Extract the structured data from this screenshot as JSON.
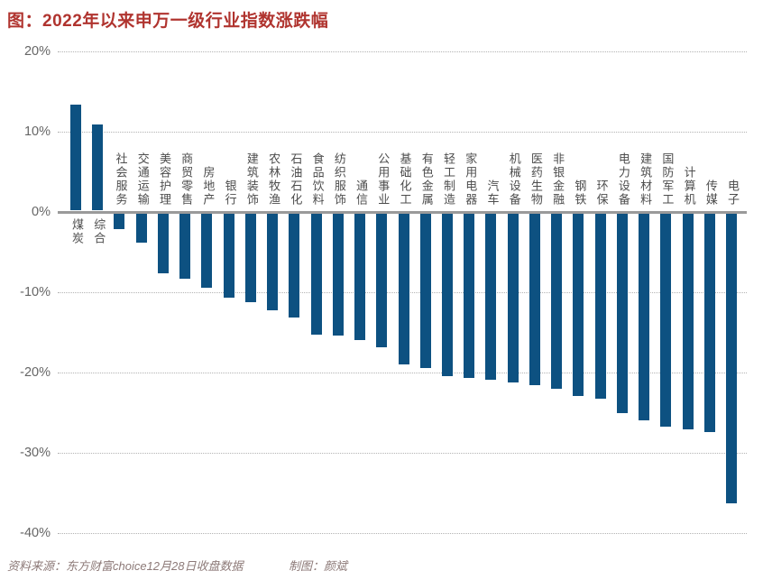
{
  "title": "图：2022年以来申万一级行业指数涨跌幅",
  "footer": {
    "source": "资料来源：东方财富choice12月28日收盘数据",
    "credit": "制图：颜斌"
  },
  "colors": {
    "bar": "#0d5181",
    "title_text": "#b0342f",
    "footer_text": "#8d7a78",
    "axis_line": "#9a9a9a",
    "gridline": "#b3b3b3",
    "tick_label": "#666666",
    "category_label": "#4d4d4d",
    "background": "#ffffff"
  },
  "chart_data": {
    "type": "bar",
    "title": "2022年以来申万一级行业指数涨跌幅",
    "unit": "percent",
    "categories": [
      "煤炭",
      "综合",
      "社会服务",
      "交通运输",
      "美容护理",
      "商贸零售",
      "房地产",
      "银行",
      "建筑装饰",
      "农林牧渔",
      "石油石化",
      "食品饮料",
      "纺织服饰",
      "通信",
      "公用事业",
      "基础化工",
      "有色金属",
      "轻工制造",
      "家用电器",
      "汽车",
      "机械设备",
      "医药生物",
      "非银金融",
      "钢铁",
      "环保",
      "电力设备",
      "建筑材料",
      "国防军工",
      "计算机",
      "传媒",
      "电子"
    ],
    "values": [
      13.2,
      10.7,
      -2.1,
      -3.8,
      -7.6,
      -8.3,
      -9.4,
      -10.7,
      -11.2,
      -12.3,
      -13.2,
      -15.3,
      -15.4,
      -16.0,
      -16.8,
      -19.0,
      -19.4,
      -20.4,
      -20.7,
      -20.9,
      -21.2,
      -21.6,
      -22.0,
      -22.9,
      -23.3,
      -25.1,
      -25.9,
      -26.7,
      -27.1,
      -27.4,
      -36.3
    ],
    "ylim": [
      -40,
      20
    ],
    "yticks": [
      {
        "label": "20%",
        "value": 20
      },
      {
        "label": "10%",
        "value": 10
      },
      {
        "label": "0%",
        "value": 0
      },
      {
        "label": "-10%",
        "value": -10
      },
      {
        "label": "-20%",
        "value": -20
      },
      {
        "label": "-30%",
        "value": -30
      },
      {
        "label": "-40%",
        "value": -40
      }
    ],
    "grid": "horizontal-dotted",
    "legend": "none",
    "bar_color": "#0d5181",
    "xlabel": "",
    "ylabel": ""
  }
}
